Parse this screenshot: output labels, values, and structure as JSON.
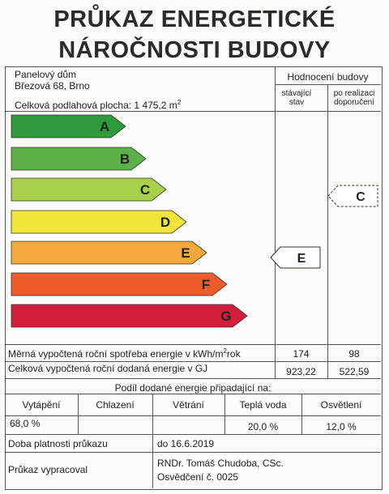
{
  "title": {
    "line1": "PRŮKAZ ENERGETICKÉ",
    "line2": "NÁROČNOSTI BUDOVY"
  },
  "building": {
    "type": "Panelový dům",
    "address": "Březová 68, Brno",
    "floor_area_label": "Celková podlahová plocha: 1 475,2 m",
    "floor_area_sup": "2"
  },
  "rating": {
    "header": "Hodnocení budovy",
    "current_label": "stávající stav",
    "recommended_label": "po realizaci doporučení",
    "current_class": "E",
    "recommended_class": "C"
  },
  "classes": [
    {
      "letter": "A",
      "color": "#2e9a3c"
    },
    {
      "letter": "B",
      "color": "#5cb24a"
    },
    {
      "letter": "C",
      "color": "#a9d04a"
    },
    {
      "letter": "D",
      "color": "#f1e53b"
    },
    {
      "letter": "E",
      "color": "#f6a93b"
    },
    {
      "letter": "F",
      "color": "#ef5b2a"
    },
    {
      "letter": "G",
      "color": "#d21f3c"
    }
  ],
  "energy": {
    "specific_label": "Měrná vypočtená roční spotřeba energie v kWh/m",
    "specific_sup": "2",
    "specific_unit_end": "rok",
    "specific_current": "174",
    "specific_recommended": "98",
    "total_label": "Celková vypočtená roční dodaná energie v GJ",
    "total_current": "923,22",
    "total_recommended": "522,59"
  },
  "share": {
    "header": "Podíl dodané energie připadající na:",
    "columns": [
      {
        "label": "Vytápění",
        "value": "68,0 %"
      },
      {
        "label": "Chlazení",
        "value": ""
      },
      {
        "label": "Větrání",
        "value": ""
      },
      {
        "label": "Teplá voda",
        "value": "20,0 %"
      },
      {
        "label": "Osvětlení",
        "value": "12,0 %"
      }
    ]
  },
  "validity": {
    "label": "Doba platnosti průkazu",
    "value": "do 16.6.2019"
  },
  "author": {
    "label": "Průkaz vypracoval",
    "name": "RNDr. Tomáš Chudoba, CSc.",
    "certificate": "Osvědčení č. 0025"
  }
}
